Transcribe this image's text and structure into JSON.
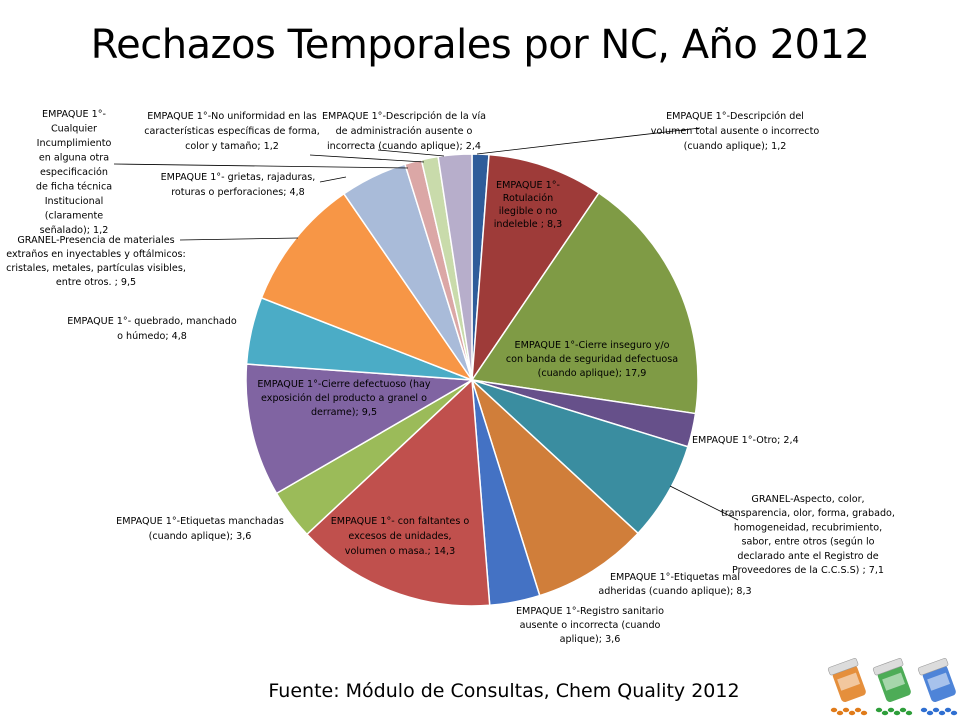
{
  "title": "Rechazos Temporales por NC, Año 2012",
  "footer": "Fuente: Módulo de Consultas, Chem Quality 2012",
  "chart_data": {
    "type": "pie",
    "title": "Rechazos Temporales por NC, Año 2012",
    "slices": [
      {
        "label": "EMPAQUE 1°-Descripción del volumen total ausente o incorrecto (cuando aplique)",
        "value": 1.2,
        "color": "#2f5c9a"
      },
      {
        "label": "EMPAQUE 1°-Rotulación ilegible o no indeleble",
        "value": 8.3,
        "color": "#9e3b39"
      },
      {
        "label": "EMPAQUE 1°-Cierre inseguro y/o con banda de seguridad defectuosa (cuando aplique)",
        "value": 17.9,
        "color": "#7f9b45"
      },
      {
        "label": "EMPAQUE 1°-Otro",
        "value": 2.4,
        "color": "#66508a"
      },
      {
        "label": "GRANEL-Aspecto, color, transparencia, olor, forma, grabado, homogeneidad, recubrimiento, sabor, entre otros (según lo declarado ante el Registro de Proveedores de la C.C.S.S)",
        "value": 7.1,
        "color": "#3a8da0"
      },
      {
        "label": "EMPAQUE 1°-Etiquetas mal adheridas (cuando aplique)",
        "value": 8.3,
        "color": "#d07e3a"
      },
      {
        "label": "EMPAQUE 1°-Registro sanitario ausente o incorrecta (cuando aplique)",
        "value": 3.6,
        "color": "#4472c4"
      },
      {
        "label": "EMPAQUE 1°- con faltantes o excesos de unidades, volumen o masa.",
        "value": 14.3,
        "color": "#c0504d"
      },
      {
        "label": "EMPAQUE 1°-Etiquetas manchadas (cuando aplique)",
        "value": 3.6,
        "color": "#9bbb59"
      },
      {
        "label": "EMPAQUE 1°-Cierre defectuoso (hay exposición del producto a granel o derrame)",
        "value": 9.5,
        "color": "#8064a2"
      },
      {
        "label": "EMPAQUE 1°- quebrado, manchado o húmedo",
        "value": 4.8,
        "color": "#4bacc6"
      },
      {
        "label": "GRANEL-Presencia de materiales extraños en inyectables y oftálmicos: cristales, metales, partículas visibles, entre otros. ",
        "value": 9.5,
        "color": "#f79646"
      },
      {
        "label": "EMPAQUE 1°- grietas, rajaduras, roturas o perforaciones",
        "value": 4.8,
        "color": "#a9bbd9"
      },
      {
        "label": "EMPAQUE 1°-Cualquier Incumplimiento en alguna otra especificación de ficha técnica Institucional (claramente señalado)",
        "value": 1.2,
        "color": "#dba7a6"
      },
      {
        "label": "EMPAQUE 1°-No uniformidad en las características específicas de forma, color y tamaño",
        "value": 1.2,
        "color": "#c9dbab"
      },
      {
        "label": "EMPAQUE 1°-Descripción de la vía de administración ausente o incorrecta (cuando aplique)",
        "value": 2.4,
        "color": "#b7aecb"
      }
    ],
    "data_labels": [
      [
        "EMPAQUE 1°-Descripción del",
        "volumen total ausente o incorrecto",
        "(cuando aplique); 1,2"
      ],
      [
        "EMPAQUE 1°-",
        "Rotulación",
        "ilegible o no",
        "indeleble ; 8,3"
      ],
      [
        "EMPAQUE 1°-Cierre inseguro y/o",
        "con banda de seguridad defectuosa",
        "(cuando aplique); 17,9"
      ],
      [
        "EMPAQUE 1°-Otro; 2,4"
      ],
      [
        "GRANEL-Aspecto, color,",
        "transparencia, olor, forma, grabado,",
        "homogeneidad, recubrimiento,",
        "sabor, entre otros (según lo",
        "declarado ante el Registro de",
        "Proveedores de la C.C.S.S) ; 7,1"
      ],
      [
        "EMPAQUE 1°-Etiquetas mal",
        "adheridas (cuando aplique); 8,3"
      ],
      [
        "EMPAQUE 1°-Registro sanitario",
        "ausente o incorrecta (cuando",
        "aplique); 3,6"
      ],
      [
        "EMPAQUE 1°- con faltantes o",
        "excesos de unidades,",
        "volumen o masa.; 14,3"
      ],
      [
        "EMPAQUE 1°-Etiquetas manchadas",
        "(cuando aplique); 3,6"
      ],
      [
        "EMPAQUE 1°-Cierre defectuoso (hay",
        "exposición del producto a granel o",
        "derrame); 9,5"
      ],
      [
        "EMPAQUE 1°- quebrado, manchado",
        "o húmedo; 4,8"
      ],
      [
        "GRANEL-Presencia de materiales",
        "extraños en inyectables y oftálmicos:",
        "cristales, metales, partículas visibles,",
        "entre otros. ; 9,5"
      ],
      [
        "EMPAQUE 1°- grietas, rajaduras,",
        "roturas o perforaciones; 4,8"
      ],
      [
        "EMPAQUE 1°-",
        "Cualquier",
        "Incumplimiento",
        "en alguna otra",
        "especificación",
        "de ficha técnica",
        "Institucional",
        "(claramente",
        "señalado); 1,2"
      ],
      [
        "EMPAQUE 1°-No uniformidad en las",
        "características específicas de forma,",
        "color y tamaño; 1,2"
      ],
      [
        "EMPAQUE 1°-Descripción de la vía",
        "de administración ausente o",
        "incorrecta (cuando aplique); 2,4"
      ]
    ],
    "start": "top",
    "direction": "clockwise",
    "legend": "none"
  },
  "decoration": {
    "icon": "pill-bottles-icon",
    "colors": [
      "#e07b1a",
      "#2e9e3a",
      "#2f6fd1"
    ]
  }
}
